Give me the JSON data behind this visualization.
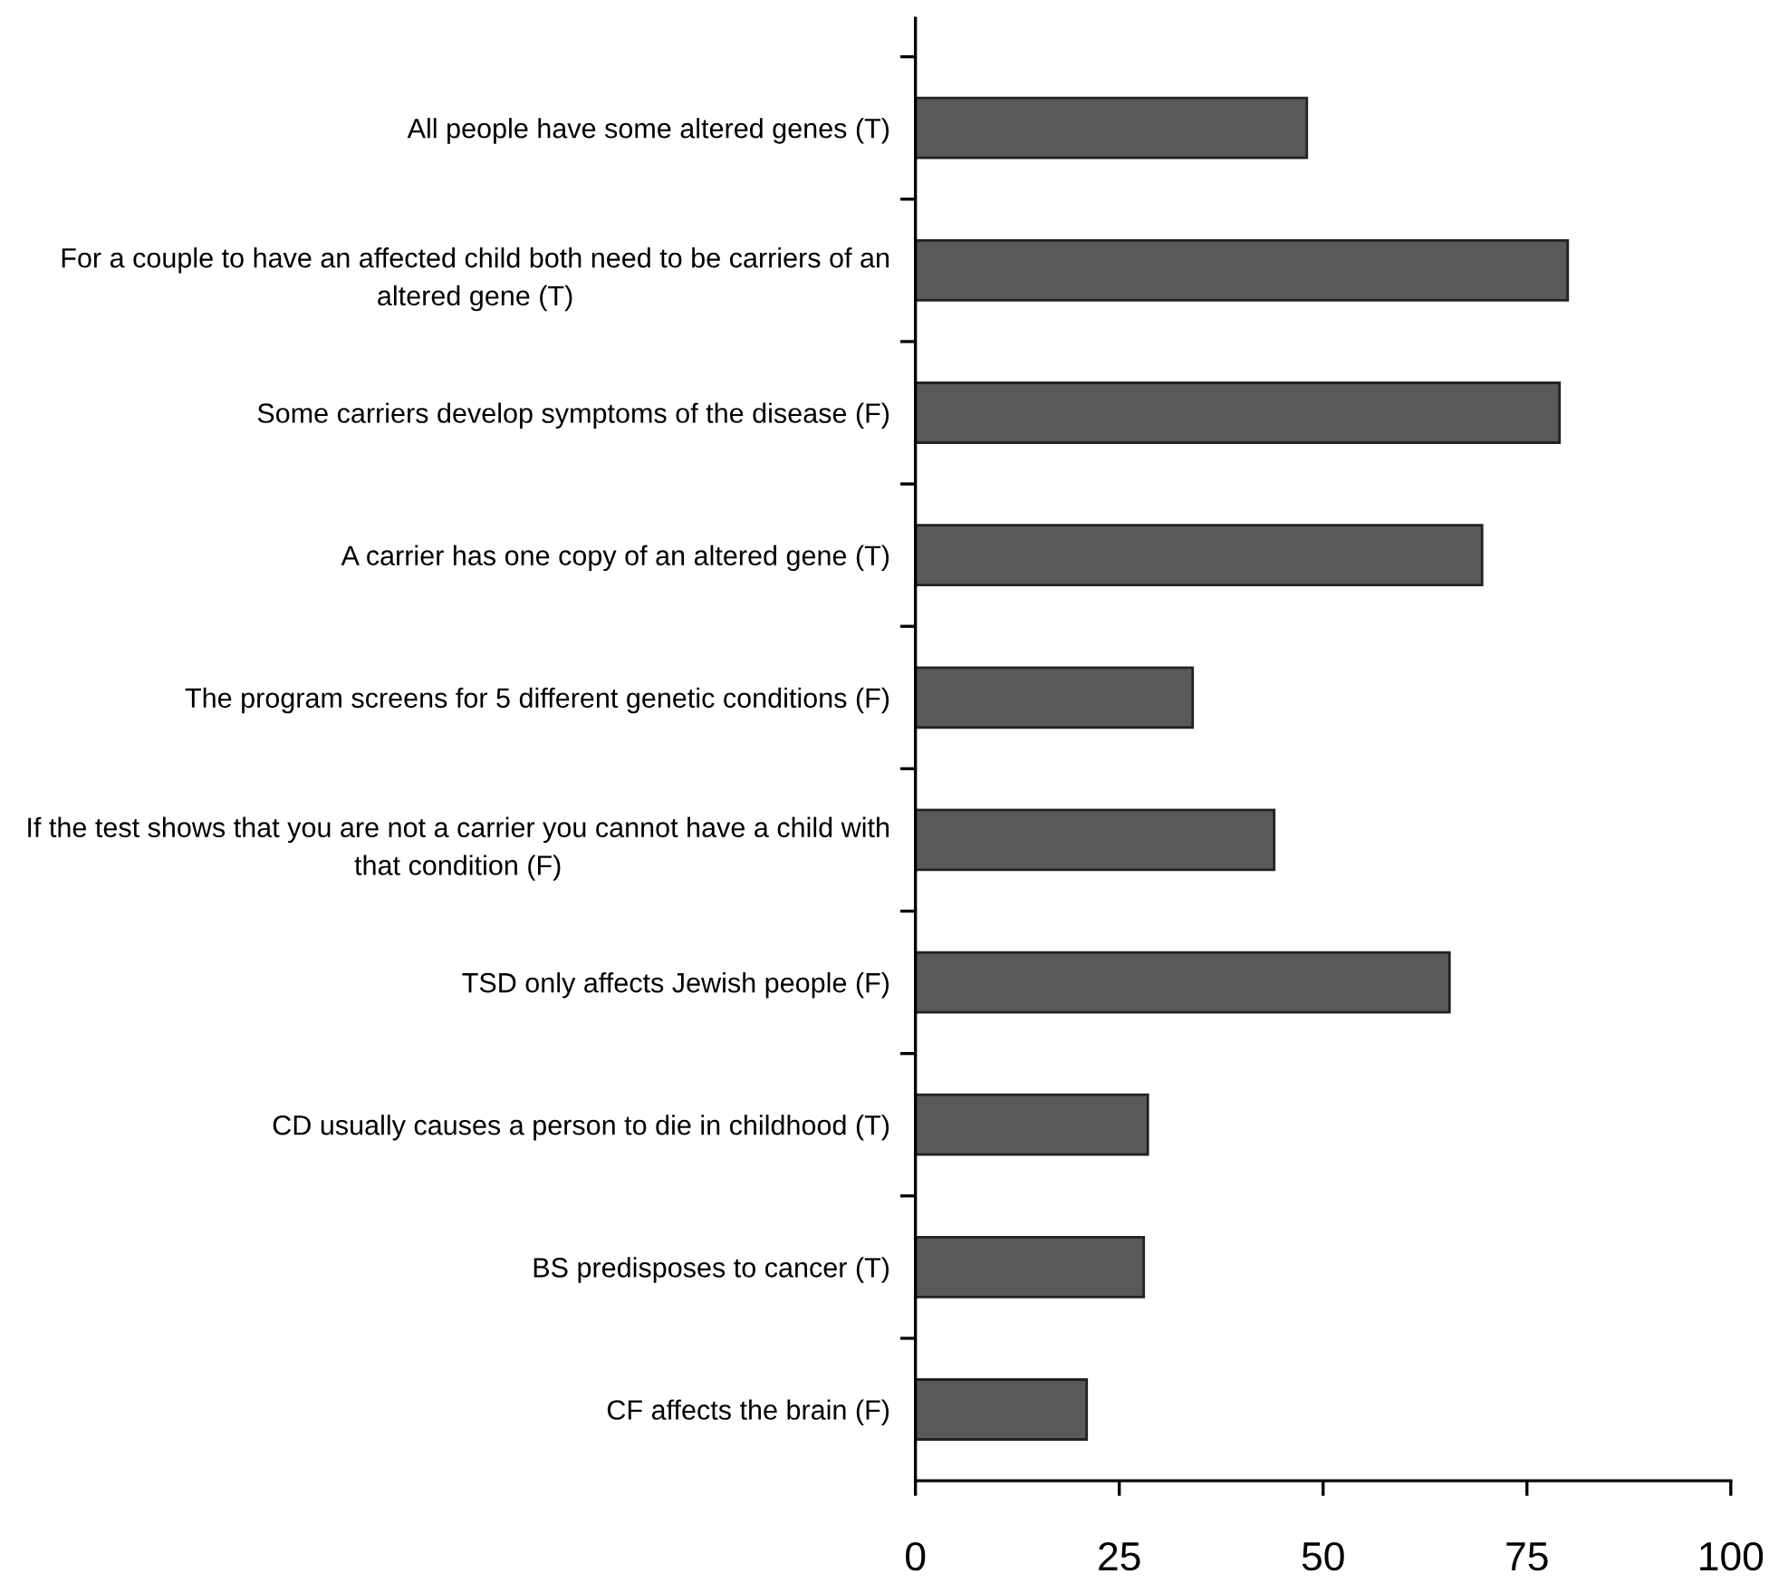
{
  "chart_data": {
    "type": "bar",
    "orientation": "horizontal",
    "categories": [
      "All people have some altered genes (T)",
      "For a couple to have an affected child both need to be carriers of an altered gene (T)",
      "Some carriers develop symptoms of the disease (F)",
      "A carrier has one copy of an altered gene (T)",
      "The program screens for 5 different genetic conditions (F)",
      "If the test shows that you are not a carrier you cannot have a child with that condition (F)",
      "TSD only affects Jewish people (F)",
      "CD usually causes a person to die in childhood (T)",
      "BS predisposes to cancer (T)",
      "CF affects the brain (F)"
    ],
    "values": [
      48,
      80,
      79,
      69.5,
      34,
      44,
      65.5,
      28.5,
      28,
      21
    ],
    "color": "#58595b",
    "xlim": [
      0,
      100
    ],
    "xticks": [
      0,
      25,
      50,
      75,
      100
    ],
    "grid": false
  }
}
